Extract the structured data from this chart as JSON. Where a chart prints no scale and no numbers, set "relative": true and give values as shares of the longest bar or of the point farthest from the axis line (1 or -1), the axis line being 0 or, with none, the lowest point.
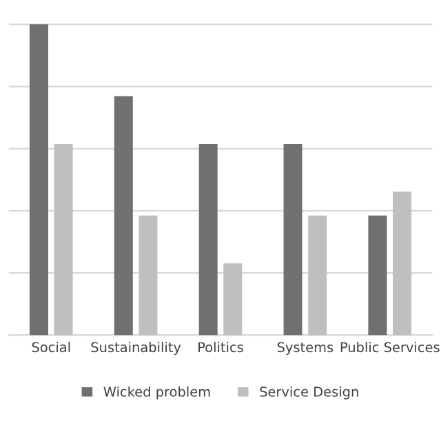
{
  "chart_data": {
    "type": "bar",
    "relative": true,
    "categories": [
      "Social",
      "Sustainability",
      "Politics",
      "Systems",
      "Public Services"
    ],
    "series": [
      {
        "name": "Wicked problem",
        "color": "#707070",
        "values": [
          1,
          0.769,
          0.615,
          0.615,
          0.385
        ]
      },
      {
        "name": "Service Design",
        "color": "#bfbfbf",
        "values": [
          0.615,
          0.385,
          0.231,
          0.385,
          0.462
        ]
      }
    ],
    "grid": "y",
    "legend": "bottom"
  }
}
